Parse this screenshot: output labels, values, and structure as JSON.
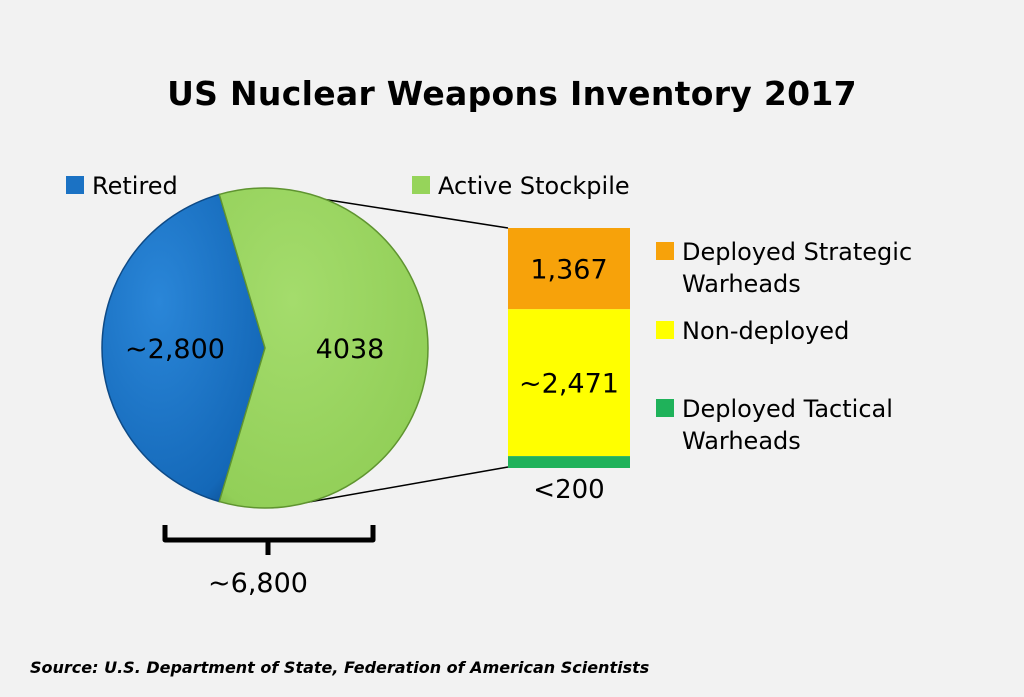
{
  "chart_data": {
    "type": "pie",
    "title": "US Nuclear Weapons Inventory 2017",
    "source": "Source: U.S. Department of State, Federation of American Scientists",
    "pie": {
      "slices": [
        {
          "name": "Retired",
          "value": 2800,
          "label": "~2,800",
          "color": "#1b72c4"
        },
        {
          "name": "Active Stockpile",
          "value": 4038,
          "label": "4038",
          "color": "#96d45a"
        }
      ],
      "total_label": "~6,800"
    },
    "breakdown": {
      "type": "stacked-bar",
      "segments": [
        {
          "name": "Deployed Strategic Warheads",
          "value": 1367,
          "label": "1,367",
          "color": "#f7a20a"
        },
        {
          "name": "Non-deployed",
          "value": 2471,
          "label": "~2,471",
          "color": "#ffff00"
        },
        {
          "name": "Deployed Tactical Warheads",
          "value": 200,
          "label": "<200",
          "color": "#1fb25a"
        }
      ]
    },
    "legend": [
      {
        "label": "Retired",
        "color": "#1b72c4"
      },
      {
        "label": "Active Stockpile",
        "color": "#96d45a"
      },
      {
        "label": "Deployed Strategic\nWarheads",
        "color": "#f7a20a"
      },
      {
        "label": "Non-deployed",
        "color": "#ffff00"
      },
      {
        "label": "Deployed Tactical\nWarheads",
        "color": "#1fb25a"
      }
    ]
  }
}
